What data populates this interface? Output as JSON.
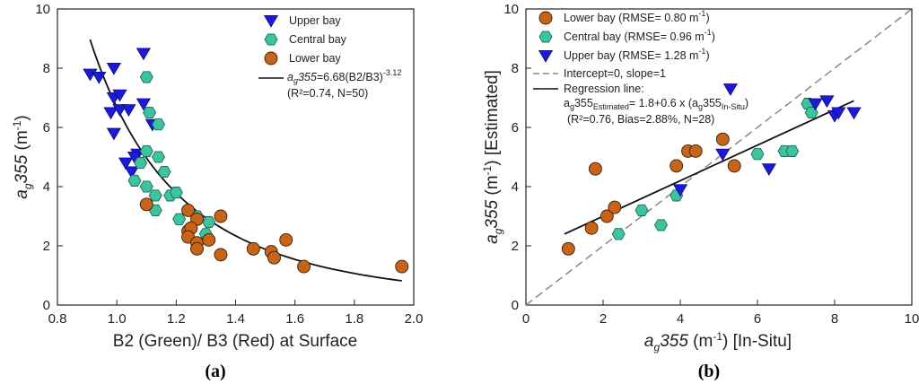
{
  "colors": {
    "upper": "#1a1ad8",
    "central": "#3cc4a0",
    "lower": "#c8641a",
    "fit": "#111111",
    "identity": "#888888"
  },
  "chart_data": [
    {
      "type": "scatter",
      "panel_label": "(a)",
      "xlabel": "B2 (Green)/ B3 (Red) at Surface",
      "ylabel": {
        "main": "a",
        "sub": "g",
        "rest": "355",
        "unit": " (m",
        "unit_sup": "-1",
        "unit_end": ")"
      },
      "xlim": [
        0.8,
        2.0
      ],
      "ylim": [
        0,
        10
      ],
      "xticks": [
        "0.8",
        "1.0",
        "1.2",
        "1.4",
        "1.6",
        "1.8",
        "2.0"
      ],
      "yticks": [
        "0",
        "2",
        "4",
        "6",
        "8",
        "10"
      ],
      "series": [
        {
          "name": "Upper bay",
          "marker": "triangle",
          "points": [
            [
              0.91,
              7.8
            ],
            [
              0.94,
              7.7
            ],
            [
              0.99,
              8.0
            ],
            [
              1.09,
              8.5
            ],
            [
              0.99,
              7.0
            ],
            [
              1.01,
              7.1
            ],
            [
              0.98,
              6.5
            ],
            [
              1.01,
              6.6
            ],
            [
              1.04,
              6.6
            ],
            [
              1.09,
              6.8
            ],
            [
              1.12,
              6.1
            ],
            [
              0.99,
              5.8
            ],
            [
              1.07,
              5.1
            ],
            [
              1.05,
              4.5
            ],
            [
              1.03,
              4.8
            ],
            [
              1.06,
              5.0
            ]
          ]
        },
        {
          "name": "Central bay",
          "marker": "hexagon",
          "points": [
            [
              1.1,
              7.7
            ],
            [
              1.11,
              6.5
            ],
            [
              1.14,
              6.1
            ],
            [
              1.1,
              5.2
            ],
            [
              1.14,
              5.0
            ],
            [
              1.06,
              4.2
            ],
            [
              1.08,
              4.8
            ],
            [
              1.16,
              4.5
            ],
            [
              1.1,
              4.0
            ],
            [
              1.13,
              3.7
            ],
            [
              1.13,
              3.2
            ],
            [
              1.18,
              3.7
            ],
            [
              1.2,
              3.8
            ],
            [
              1.21,
              2.9
            ],
            [
              1.31,
              2.8
            ],
            [
              1.3,
              2.4
            ],
            [
              1.27,
              3.0
            ]
          ]
        },
        {
          "name": "Lower bay",
          "marker": "circle",
          "points": [
            [
              1.1,
              3.4
            ],
            [
              1.24,
              3.2
            ],
            [
              1.27,
              2.9
            ],
            [
              1.35,
              3.0
            ],
            [
              1.24,
              2.5
            ],
            [
              1.25,
              2.6
            ],
            [
              1.24,
              2.3
            ],
            [
              1.27,
              2.1
            ],
            [
              1.27,
              1.9
            ],
            [
              1.31,
              2.2
            ],
            [
              1.35,
              1.7
            ],
            [
              1.46,
              1.9
            ],
            [
              1.52,
              1.8
            ],
            [
              1.53,
              1.6
            ],
            [
              1.57,
              2.2
            ],
            [
              1.63,
              1.3
            ],
            [
              1.96,
              1.3
            ]
          ]
        }
      ],
      "fit": {
        "a": 6.68,
        "b": -3.12,
        "x_from": 0.91,
        "x_to": 1.96
      },
      "legend": {
        "position": "top-right",
        "entries": [
          "Upper bay",
          "Central bay",
          "Lower bay"
        ],
        "equation": {
          "a": "a",
          "sub": "g",
          "rest": "355",
          "eq": "=6.68(B2/B3)",
          "sup": "-3.12"
        },
        "stats": "(R²=0.74, N=50)"
      }
    },
    {
      "type": "scatter",
      "panel_label": "(b)",
      "xlabel": {
        "main": "a",
        "sub": "g",
        "rest": "355",
        "unit": " (m",
        "unit_sup": "-1",
        "unit_end": ") [In-Situ]"
      },
      "ylabel": {
        "main": "a",
        "sub": "g",
        "rest": "355",
        "unit": " (m",
        "unit_sup": "-1",
        "unit_end": ") [Estimated]"
      },
      "xlim": [
        0,
        10
      ],
      "ylim": [
        0,
        10
      ],
      "xticks": [
        "0",
        "2",
        "4",
        "6",
        "8",
        "10"
      ],
      "yticks": [
        "0",
        "2",
        "4",
        "6",
        "8",
        "10"
      ],
      "series": [
        {
          "name": "Lower bay",
          "marker": "circle",
          "points": [
            [
              1.1,
              1.9
            ],
            [
              1.7,
              2.6
            ],
            [
              1.8,
              4.6
            ],
            [
              2.1,
              3.0
            ],
            [
              2.3,
              3.3
            ],
            [
              3.9,
              4.7
            ],
            [
              4.2,
              5.2
            ],
            [
              4.4,
              5.2
            ],
            [
              5.1,
              5.6
            ],
            [
              5.4,
              4.7
            ]
          ]
        },
        {
          "name": "Central bay",
          "marker": "hexagon",
          "points": [
            [
              2.4,
              2.4
            ],
            [
              3.0,
              3.2
            ],
            [
              3.5,
              2.7
            ],
            [
              3.9,
              3.7
            ],
            [
              6.0,
              5.1
            ],
            [
              6.7,
              5.2
            ],
            [
              6.9,
              5.2
            ],
            [
              7.3,
              6.8
            ],
            [
              7.4,
              6.5
            ]
          ]
        },
        {
          "name": "Upper bay",
          "marker": "triangle",
          "points": [
            [
              4.0,
              3.9
            ],
            [
              5.1,
              5.1
            ],
            [
              5.3,
              7.3
            ],
            [
              6.3,
              4.6
            ],
            [
              7.5,
              6.8
            ],
            [
              7.8,
              6.9
            ],
            [
              8.0,
              6.4
            ],
            [
              8.1,
              6.5
            ],
            [
              8.5,
              6.5
            ]
          ]
        }
      ],
      "identity": {
        "label": "Intercept=0, slope=1"
      },
      "regression": {
        "intercept": 1.8,
        "slope": 0.6,
        "x_from": 1.0,
        "x_to": 8.5
      },
      "legend": {
        "position": "top-left",
        "entries": [
          {
            "name": "Lower bay",
            "rmse": "(RMSE= 0.80 m",
            "unit_sup": "-1",
            "unit_end": ")"
          },
          {
            "name": "Central bay",
            "rmse": "(RMSE= 0.96 m",
            "unit_sup": "-1",
            "unit_end": ")"
          },
          {
            "name": "Upper bay",
            "rmse": "(RMSE= 1.28 m",
            "unit_sup": "-1",
            "unit_end": ")"
          }
        ],
        "regression_label": "Regression line:",
        "equation": {
          "a": "a",
          "sub": "g",
          "rest": "355",
          "sub2": "Estimated",
          "eq": "= 1.8+0.6 x (a",
          "sub3": "g",
          "rest2": "355",
          "sub4": "In-Situ",
          "end": ")"
        },
        "stats": "(R²=0.76, Bias=2.88%, N=28)"
      }
    }
  ]
}
